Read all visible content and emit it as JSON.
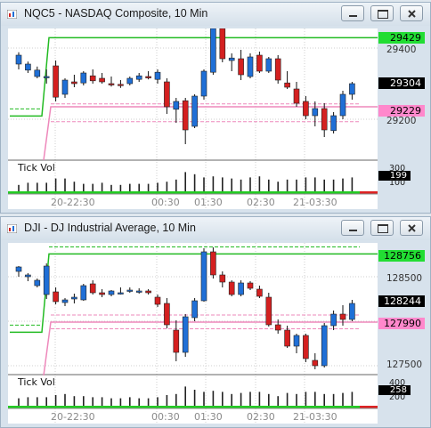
{
  "colors": {
    "up": "#1f6fd6",
    "down": "#d42020",
    "green": "#22bb22",
    "pink": "#ee88bb",
    "bg": "#ffffff"
  },
  "icons": {
    "window_icon": "chart-window-icon",
    "minimize": "minimize-icon",
    "restore": "restore-icon",
    "close": "close-icon"
  },
  "x_labels": [
    "20-22:30",
    "00:30",
    "01:30",
    "02:30",
    "21-03:30"
  ],
  "vol_label": "Tick Vol",
  "windows": [
    {
      "title": "NQC5 - NASDAQ Composite, 10 Min",
      "price_labels": [
        "29400",
        "29200"
      ],
      "tags": {
        "green": "29429",
        "current": "29304",
        "pink": "29229"
      },
      "vol_tags": {
        "current": "199",
        "top": "300",
        "bottom": "100"
      }
    },
    {
      "title": "DJI - DJ Industrial Average, 10 Min",
      "price_labels": [
        "128500",
        "128000",
        "127500"
      ],
      "tags": {
        "green": "128756",
        "current": "128244",
        "pink": "127990"
      },
      "vol_tags": {
        "current": "258",
        "top": "400",
        "bottom": "200"
      }
    }
  ],
  "chart_data": [
    {
      "type": "candlestick",
      "title": "NQC5 - NASDAQ Composite, 10 Min",
      "y_ticks": [
        29200,
        29400
      ],
      "candles": [
        [
          29355,
          29388,
          29340,
          29380
        ],
        [
          29338,
          29362,
          29330,
          29355
        ],
        [
          29320,
          29348,
          29315,
          29338
        ],
        [
          29318,
          29340,
          29300,
          29320
        ],
        [
          29350,
          29365,
          29250,
          29262
        ],
        [
          29270,
          29315,
          29260,
          29310
        ],
        [
          29305,
          29325,
          29290,
          29300
        ],
        [
          29302,
          29335,
          29295,
          29330
        ],
        [
          29322,
          29340,
          29300,
          29308
        ],
        [
          29315,
          29330,
          29300,
          29305
        ],
        [
          29300,
          29320,
          29292,
          29298
        ],
        [
          29298,
          29310,
          29288,
          29295
        ],
        [
          29300,
          29320,
          29295,
          29315
        ],
        [
          29312,
          29330,
          29305,
          29322
        ],
        [
          29320,
          29335,
          29312,
          29316
        ],
        [
          29312,
          29340,
          29300,
          29332
        ],
        [
          29305,
          29315,
          29215,
          29235
        ],
        [
          29228,
          29260,
          29190,
          29250
        ],
        [
          29252,
          29260,
          29130,
          29170
        ],
        [
          29180,
          29270,
          29175,
          29265
        ],
        [
          29265,
          29340,
          29255,
          29335
        ],
        [
          29332,
          29460,
          29325,
          29455
        ],
        [
          29455,
          29460,
          29360,
          29370
        ],
        [
          29365,
          29385,
          29335,
          29372
        ],
        [
          29370,
          29395,
          29310,
          29325
        ],
        [
          29320,
          29385,
          29315,
          29375
        ],
        [
          29380,
          29390,
          29330,
          29335
        ],
        [
          29335,
          29375,
          29330,
          29370
        ],
        [
          29370,
          29380,
          29300,
          29310
        ],
        [
          29302,
          29335,
          29285,
          29290
        ],
        [
          29285,
          29305,
          29235,
          29245
        ],
        [
          29250,
          29265,
          29200,
          29210
        ],
        [
          29210,
          29250,
          29180,
          29230
        ],
        [
          29230,
          29245,
          29150,
          29170
        ],
        [
          29168,
          29220,
          29160,
          29210
        ],
        [
          29210,
          29280,
          29200,
          29270
        ],
        [
          29270,
          29305,
          29255,
          29300
        ]
      ],
      "volume": [
        6,
        8,
        8,
        8,
        12,
        12,
        9,
        7,
        7,
        8,
        6,
        6,
        7,
        7,
        7,
        8,
        9,
        11,
        18,
        16,
        13,
        14,
        13,
        12,
        11,
        13,
        14,
        11,
        9,
        11,
        11,
        13,
        13,
        11,
        11,
        12,
        13
      ]
    },
    {
      "type": "candlestick",
      "title": "DJI - DJ Industrial Average, 10 Min",
      "y_ticks": [
        127500,
        128000,
        128500
      ],
      "candles": [
        [
          128560,
          128620,
          128500,
          128610
        ],
        [
          128500,
          128540,
          128450,
          128520
        ],
        [
          128400,
          128480,
          128380,
          128460
        ],
        [
          128300,
          128650,
          128250,
          128620
        ],
        [
          128330,
          128380,
          128190,
          128220
        ],
        [
          128210,
          128260,
          128170,
          128240
        ],
        [
          128250,
          128310,
          128200,
          128270
        ],
        [
          128240,
          128420,
          128230,
          128400
        ],
        [
          128420,
          128460,
          128300,
          128320
        ],
        [
          128320,
          128360,
          128270,
          128300
        ],
        [
          128300,
          128350,
          128280,
          128340
        ],
        [
          128320,
          128380,
          128300,
          128320
        ],
        [
          128340,
          128380,
          128320,
          128350
        ],
        [
          128330,
          128370,
          128310,
          128340
        ],
        [
          128340,
          128360,
          128300,
          128320
        ],
        [
          128270,
          128300,
          128160,
          128190
        ],
        [
          128200,
          128260,
          127920,
          127960
        ],
        [
          127900,
          128010,
          127550,
          127650
        ],
        [
          127650,
          128080,
          127600,
          128050
        ],
        [
          128040,
          128260,
          128000,
          128230
        ],
        [
          128230,
          128820,
          128220,
          128780
        ],
        [
          128780,
          128830,
          128480,
          128520
        ],
        [
          128520,
          128560,
          128380,
          128440
        ],
        [
          128440,
          128460,
          128280,
          128300
        ],
        [
          128300,
          128460,
          128280,
          128430
        ],
        [
          128430,
          128450,
          128350,
          128370
        ],
        [
          128360,
          128400,
          128260,
          128280
        ],
        [
          128270,
          128320,
          127940,
          127960
        ],
        [
          127960,
          128020,
          127860,
          127900
        ],
        [
          127900,
          127950,
          127700,
          127720
        ],
        [
          127720,
          127860,
          127640,
          127840
        ],
        [
          127840,
          127860,
          127540,
          127580
        ],
        [
          127560,
          127640,
          127460,
          127500
        ],
        [
          127500,
          127980,
          127480,
          127950
        ],
        [
          127950,
          128120,
          127900,
          128080
        ],
        [
          128080,
          128180,
          127950,
          128020
        ],
        [
          128020,
          128240,
          128000,
          128200
        ]
      ],
      "volume": [
        7,
        8,
        8,
        8,
        10,
        11,
        9,
        9,
        8,
        8,
        7,
        7,
        8,
        7,
        7,
        8,
        10,
        11,
        18,
        15,
        13,
        14,
        13,
        11,
        12,
        13,
        13,
        11,
        9,
        12,
        11,
        13,
        13,
        11,
        11,
        12,
        13
      ]
    }
  ]
}
